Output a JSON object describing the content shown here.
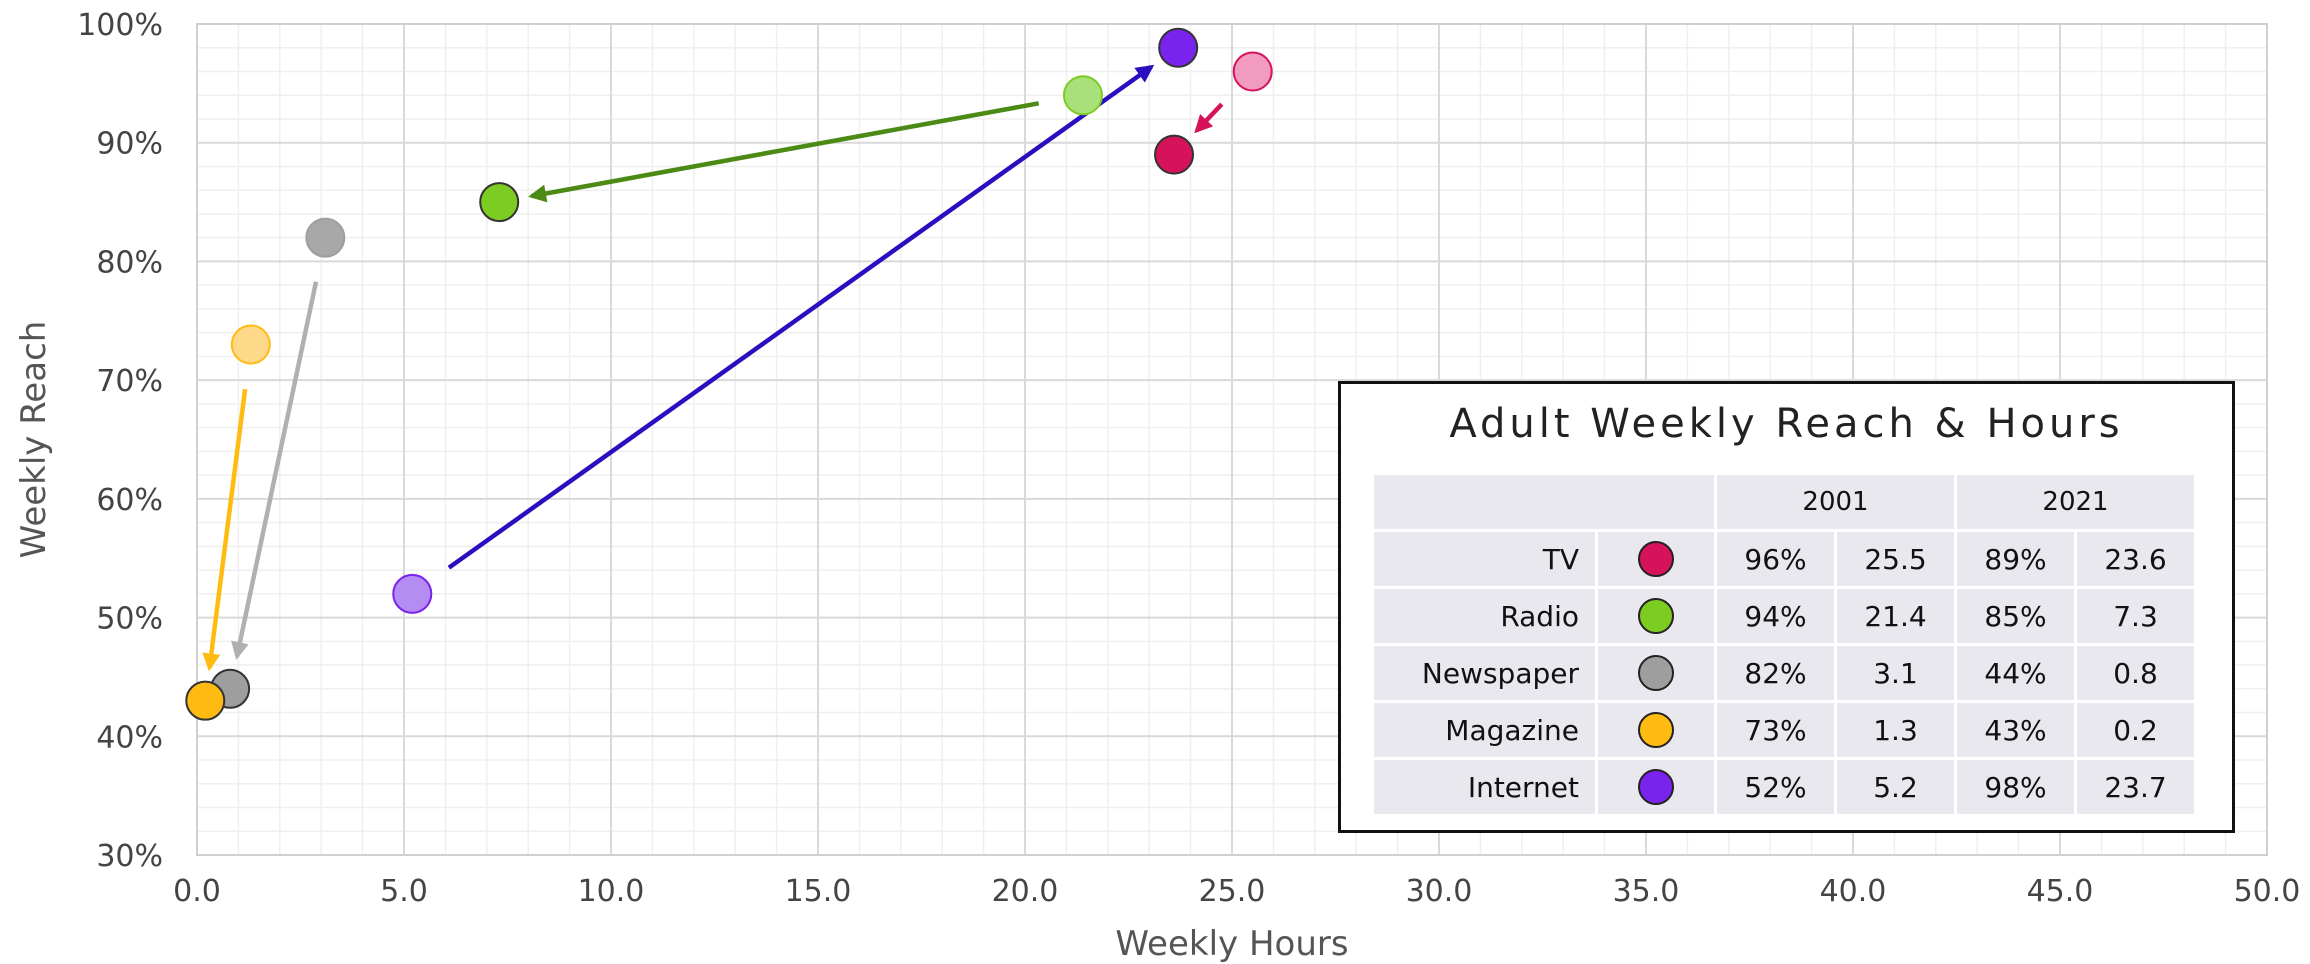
{
  "chart_data": {
    "type": "scatter",
    "xlabel": "Weekly Hours",
    "ylabel": "Weekly Reach",
    "xlim": [
      0,
      50
    ],
    "ylim": [
      30,
      100
    ],
    "x_ticks": [
      "0.0",
      "5.0",
      "10.0",
      "15.0",
      "20.0",
      "25.0",
      "30.0",
      "35.0",
      "40.0",
      "45.0",
      "50.0"
    ],
    "y_ticks": [
      "30%",
      "40%",
      "50%",
      "60%",
      "70%",
      "80%",
      "90%",
      "100%"
    ],
    "grid": true,
    "series": [
      {
        "name": "TV",
        "color": "#d6125a",
        "color_2001": "#f29bc0",
        "hours_2001": 25.5,
        "reach_2001": 96,
        "hours_2021": 23.6,
        "reach_2021": 89
      },
      {
        "name": "Radio",
        "color": "#7ccc22",
        "color_2001": "#a9e07a",
        "hours_2001": 21.4,
        "reach_2001": 94,
        "hours_2021": 7.3,
        "reach_2021": 85,
        "arrow_color": "#4c8a16"
      },
      {
        "name": "Newspaper",
        "color": "#9e9e9e",
        "color_2001": "#a8a8a8",
        "hours_2001": 3.1,
        "reach_2001": 82,
        "hours_2021": 0.8,
        "reach_2021": 44,
        "arrow_color": "#b0b0b0"
      },
      {
        "name": "Magazine",
        "color": "#ffbb11",
        "color_2001": "#ffd98a",
        "hours_2001": 1.3,
        "reach_2001": 73,
        "hours_2021": 0.2,
        "reach_2021": 43
      },
      {
        "name": "Internet",
        "color": "#7a22ee",
        "color_2001": "#b48cf2",
        "hours_2001": 5.2,
        "reach_2001": 52,
        "hours_2021": 23.7,
        "reach_2021": 98,
        "arrow_color": "#2a0fc0"
      }
    ]
  },
  "legend": {
    "title": "Adult Weekly Reach & Hours",
    "year_a": "2001",
    "year_b": "2021",
    "rows": [
      {
        "name": "TV",
        "reach_a": "96%",
        "hours_a": "25.5",
        "reach_b": "89%",
        "hours_b": "23.6"
      },
      {
        "name": "Radio",
        "reach_a": "94%",
        "hours_a": "21.4",
        "reach_b": "85%",
        "hours_b": "7.3"
      },
      {
        "name": "Newspaper",
        "reach_a": "82%",
        "hours_a": "3.1",
        "reach_b": "44%",
        "hours_b": "0.8"
      },
      {
        "name": "Magazine",
        "reach_a": "73%",
        "hours_a": "1.3",
        "reach_b": "43%",
        "hours_b": "0.2"
      },
      {
        "name": "Internet",
        "reach_a": "52%",
        "hours_a": "5.2",
        "reach_b": "98%",
        "hours_b": "23.7"
      }
    ]
  }
}
